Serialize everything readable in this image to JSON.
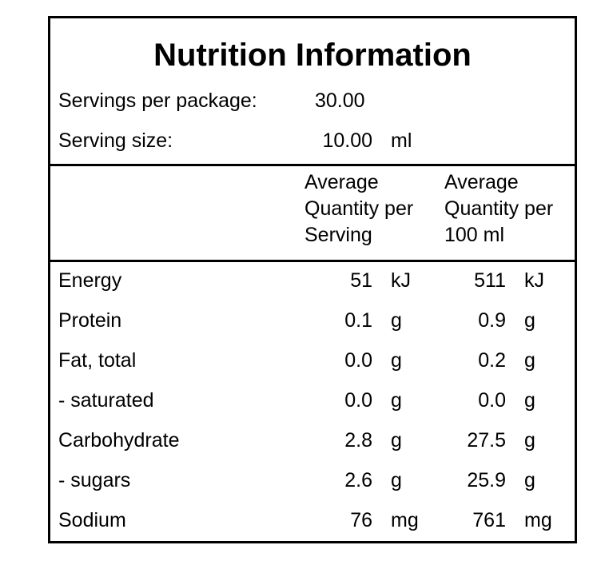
{
  "title": "Nutrition Information",
  "servings": {
    "label": "Servings per package:",
    "value": "30.00"
  },
  "serving_size": {
    "label": "Serving size:",
    "value": "10.00",
    "unit": "ml"
  },
  "table": {
    "headers": [
      [
        "Average",
        "Quantity per",
        "Serving"
      ],
      [
        "Average",
        "Quantity per",
        "100 ml"
      ]
    ],
    "rows": [
      [
        "Energy",
        "51",
        "kJ",
        "511",
        "kJ"
      ],
      [
        "Protein",
        "0.1",
        "g",
        "0.9",
        "g"
      ],
      [
        "Fat, total",
        "0.0",
        "g",
        "0.2",
        "g"
      ],
      [
        "- saturated",
        "0.0",
        "g",
        "0.0",
        "g"
      ],
      [
        "Carbohydrate",
        "2.8",
        "g",
        "27.5",
        "g"
      ],
      [
        "- sugars",
        "2.6",
        "g",
        "25.9",
        "g"
      ],
      [
        "Sodium",
        "76",
        "mg",
        "761",
        "mg"
      ]
    ]
  }
}
